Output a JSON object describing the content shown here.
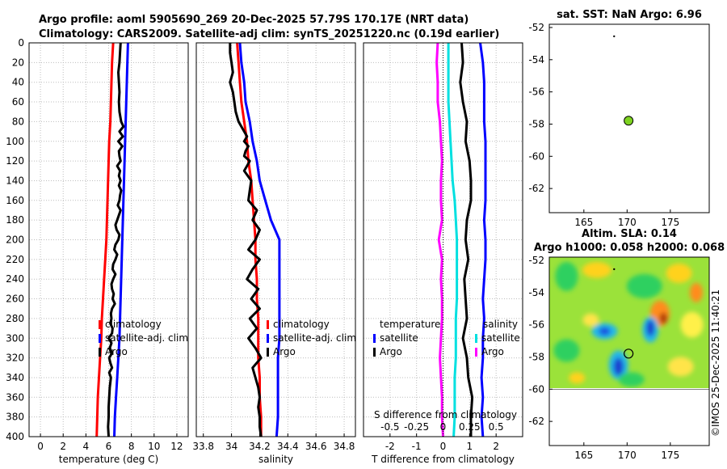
{
  "header": {
    "title_line1": "Argo profile: aoml 5905690_269 20-Dec-2025 57.79S 170.17E (NRT data)",
    "title_line2": "Climatology: CARS2009. Satellite-adj clim: synTS_20251220.nc (0.19d earlier)"
  },
  "credit": "©IMOS 25-Dec-2025 11:40:21",
  "colors": {
    "climatology": "#ff0000",
    "satellite": "#0000ff",
    "argo": "#000000",
    "salinity_satellite": "#00e0e0",
    "salinity_argo": "#ff00ff",
    "argo_marker": "#7ed321"
  },
  "chart_data": [
    {
      "id": "temperature",
      "type": "line",
      "xlabel": "temperature (deg C)",
      "ylabel": "",
      "xlim": [
        -1,
        13
      ],
      "ylim": [
        400,
        0
      ],
      "xticks": [
        0,
        2,
        4,
        6,
        8,
        10,
        12
      ],
      "yticks": [
        0,
        20,
        40,
        60,
        80,
        100,
        120,
        140,
        160,
        180,
        200,
        220,
        240,
        260,
        280,
        300,
        320,
        340,
        360,
        380,
        400
      ],
      "legend": [
        "climatology",
        "satellite-adj. clim",
        "Argo"
      ],
      "series": [
        {
          "name": "climatology",
          "color": "#ff0000",
          "depth": [
            0,
            20,
            40,
            60,
            80,
            100,
            120,
            140,
            160,
            180,
            200,
            220,
            240,
            260,
            280,
            300,
            320,
            340,
            360,
            380,
            400
          ],
          "values": [
            6.4,
            6.3,
            6.25,
            6.2,
            6.15,
            6.05,
            6.0,
            5.95,
            5.9,
            5.85,
            5.8,
            5.7,
            5.6,
            5.5,
            5.4,
            5.35,
            5.25,
            5.15,
            5.05,
            5.0,
            4.95
          ]
        },
        {
          "name": "satellite-adj. clim",
          "color": "#0000ff",
          "depth": [
            0,
            20,
            40,
            60,
            80,
            100,
            120,
            140,
            160,
            180,
            200,
            220,
            240,
            260,
            280,
            300,
            320,
            340,
            360,
            380,
            400
          ],
          "values": [
            7.7,
            7.65,
            7.6,
            7.55,
            7.5,
            7.45,
            7.4,
            7.35,
            7.3,
            7.25,
            7.2,
            7.15,
            7.1,
            7.05,
            7.0,
            6.95,
            6.85,
            6.75,
            6.65,
            6.55,
            6.5
          ]
        },
        {
          "name": "Argo",
          "color": "#000000",
          "depth": [
            0,
            10,
            20,
            30,
            40,
            50,
            60,
            70,
            80,
            85,
            90,
            95,
            100,
            105,
            110,
            115,
            120,
            125,
            130,
            135,
            140,
            145,
            150,
            155,
            160,
            165,
            170,
            175,
            180,
            185,
            190,
            195,
            200,
            205,
            210,
            215,
            220,
            225,
            230,
            235,
            240,
            245,
            250,
            255,
            260,
            265,
            270,
            275,
            280,
            285,
            290,
            295,
            300,
            305,
            310,
            315,
            320,
            325,
            330,
            335,
            340,
            350,
            360,
            370,
            380,
            390,
            400
          ],
          "values": [
            7.05,
            7.0,
            6.95,
            6.85,
            6.9,
            6.95,
            6.9,
            6.95,
            7.1,
            7.3,
            6.95,
            7.25,
            6.85,
            7.2,
            6.9,
            6.95,
            7.05,
            6.75,
            7.0,
            6.9,
            7.05,
            6.9,
            7.1,
            7.0,
            6.95,
            6.8,
            7.05,
            6.9,
            6.75,
            6.6,
            6.7,
            6.95,
            6.85,
            6.6,
            6.5,
            6.75,
            6.6,
            6.4,
            6.35,
            6.6,
            6.4,
            6.25,
            6.3,
            6.45,
            6.35,
            6.55,
            6.3,
            6.2,
            6.25,
            6.15,
            6.35,
            6.3,
            6.0,
            6.25,
            6.1,
            6.3,
            6.05,
            6.15,
            6.3,
            6.05,
            6.2,
            6.1,
            6.05,
            6.0,
            6.0,
            5.95,
            6.0
          ]
        }
      ]
    },
    {
      "id": "salinity",
      "type": "line",
      "xlabel": "salinity",
      "xlim": [
        33.75,
        34.88
      ],
      "ylim": [
        400,
        0
      ],
      "xticks": [
        33.8,
        34,
        34.2,
        34.4,
        34.6,
        34.8
      ],
      "legend": [
        "climatology",
        "satellite-adj. clim",
        "Argo"
      ],
      "series": [
        {
          "name": "climatology",
          "color": "#ff0000",
          "depth": [
            0,
            20,
            40,
            60,
            80,
            100,
            120,
            140,
            160,
            180,
            200,
            220,
            240,
            260,
            280,
            300,
            320,
            340,
            360,
            380,
            400
          ],
          "values": [
            34.04,
            34.05,
            34.06,
            34.07,
            34.09,
            34.11,
            34.12,
            34.14,
            34.15,
            34.16,
            34.17,
            34.17,
            34.18,
            34.18,
            34.19,
            34.19,
            34.19,
            34.2,
            34.2,
            34.21,
            34.21
          ]
        },
        {
          "name": "satellite-adj. clim",
          "color": "#0000ff",
          "depth": [
            0,
            20,
            40,
            60,
            80,
            100,
            120,
            140,
            160,
            180,
            200,
            220,
            240,
            260,
            280,
            300,
            320,
            340,
            360,
            380,
            400
          ],
          "values": [
            34.06,
            34.07,
            34.09,
            34.1,
            34.13,
            34.15,
            34.18,
            34.2,
            34.24,
            34.28,
            34.34,
            34.34,
            34.34,
            34.34,
            34.34,
            34.34,
            34.33,
            34.33,
            34.33,
            34.33,
            34.32
          ]
        },
        {
          "name": "Argo",
          "color": "#000000",
          "depth": [
            0,
            10,
            20,
            30,
            40,
            50,
            60,
            70,
            80,
            85,
            90,
            95,
            100,
            105,
            110,
            115,
            120,
            125,
            130,
            140,
            150,
            160,
            170,
            180,
            190,
            200,
            210,
            220,
            230,
            240,
            250,
            260,
            270,
            280,
            290,
            300,
            310,
            320,
            330,
            340,
            350,
            360,
            370,
            380,
            390,
            400
          ],
          "values": [
            33.99,
            33.99,
            34.0,
            34.01,
            33.99,
            34.01,
            34.02,
            34.03,
            34.05,
            34.07,
            34.09,
            34.11,
            34.09,
            34.12,
            34.1,
            34.09,
            34.13,
            34.11,
            34.09,
            34.14,
            34.13,
            34.12,
            34.18,
            34.15,
            34.2,
            34.17,
            34.12,
            34.2,
            34.15,
            34.11,
            34.19,
            34.14,
            34.2,
            34.13,
            34.18,
            34.12,
            34.17,
            34.21,
            34.15,
            34.17,
            34.19,
            34.2,
            34.19,
            34.2,
            34.2,
            34.21
          ]
        }
      ]
    },
    {
      "id": "difference",
      "type": "line",
      "xlabel": "T difference from climatology",
      "xlabel_top": "S difference from climatology",
      "xlim": [
        -3,
        3
      ],
      "ylim": [
        400,
        0
      ],
      "xticks": [
        -2,
        -1,
        0,
        1,
        2
      ],
      "xticks_salinity": [
        "-0.5",
        "-0.25",
        "0",
        "0.25",
        "0.5"
      ],
      "legend_temperature": {
        "heading": "temperature",
        "items": [
          "satellite",
          "Argo"
        ]
      },
      "legend_salinity": {
        "heading": "salinity",
        "items": [
          "satellite",
          "Argo"
        ]
      },
      "series": [
        {
          "name": "T satellite",
          "color": "#0000ff",
          "depth": [
            0,
            20,
            40,
            60,
            80,
            100,
            120,
            140,
            160,
            180,
            200,
            220,
            240,
            260,
            280,
            300,
            320,
            340,
            360,
            380,
            400
          ],
          "values": [
            1.4,
            1.5,
            1.55,
            1.55,
            1.55,
            1.6,
            1.6,
            1.6,
            1.6,
            1.55,
            1.6,
            1.6,
            1.55,
            1.5,
            1.55,
            1.5,
            1.5,
            1.45,
            1.5,
            1.45,
            1.5
          ]
        },
        {
          "name": "T Argo",
          "color": "#000000",
          "depth": [
            0,
            20,
            40,
            60,
            80,
            100,
            120,
            140,
            160,
            180,
            200,
            220,
            240,
            260,
            280,
            300,
            320,
            340,
            360,
            380,
            400
          ],
          "values": [
            0.7,
            0.75,
            0.65,
            0.75,
            0.9,
            0.85,
            1.0,
            1.05,
            1.05,
            0.9,
            0.85,
            0.95,
            0.8,
            0.85,
            0.9,
            0.75,
            0.9,
            0.95,
            1.1,
            1.05,
            1.05
          ]
        },
        {
          "name": "S satellite",
          "color": "#00e0e0",
          "depth": [
            0,
            20,
            40,
            60,
            80,
            100,
            120,
            140,
            160,
            180,
            200,
            220,
            240,
            260,
            280,
            300,
            320,
            340,
            360,
            380,
            400
          ],
          "values": [
            0.05,
            0.05,
            0.05,
            0.05,
            0.06,
            0.07,
            0.08,
            0.09,
            0.11,
            0.12,
            0.13,
            0.13,
            0.13,
            0.13,
            0.12,
            0.12,
            0.12,
            0.11,
            0.11,
            0.11,
            0.1
          ]
        },
        {
          "name": "S Argo",
          "color": "#ff00ff",
          "depth": [
            0,
            20,
            40,
            60,
            80,
            100,
            120,
            140,
            160,
            180,
            200,
            220,
            240,
            260,
            280,
            300,
            320,
            340,
            360,
            380,
            400
          ],
          "values": [
            -0.05,
            -0.06,
            -0.05,
            -0.05,
            -0.03,
            -0.02,
            -0.01,
            -0.02,
            -0.02,
            -0.01,
            -0.04,
            -0.01,
            -0.02,
            -0.01,
            -0.01,
            -0.02,
            -0.03,
            -0.02,
            -0.01,
            -0.01,
            0.0
          ]
        }
      ]
    },
    {
      "id": "sst_map",
      "type": "scatter",
      "title": "sat. SST: NaN Argo: 6.96",
      "xlim": [
        161,
        179.5
      ],
      "ylim": [
        -63.5,
        -51.8
      ],
      "xticks": [
        165,
        170,
        175
      ],
      "yticks": [
        -52,
        -54,
        -56,
        -58,
        -60,
        -62
      ],
      "points": [
        {
          "lon": 170.17,
          "lat": -57.79
        }
      ]
    },
    {
      "id": "sla_map",
      "type": "heatmap",
      "title_line1": "Altim. SLA: 0.14",
      "title_line2": "Argo h1000: 0.058 h2000: 0.068",
      "xlim": [
        161,
        179.5
      ],
      "ylim": [
        -63.5,
        -51.8
      ],
      "xticks": [
        165,
        170,
        175
      ],
      "yticks": [
        -52,
        -54,
        -56,
        -58,
        -60,
        -62
      ],
      "data_extent": {
        "lon": [
          161,
          179.5
        ],
        "lat": [
          -60,
          -51.8
        ]
      },
      "points": [
        {
          "lon": 170.17,
          "lat": -57.79
        }
      ]
    }
  ]
}
